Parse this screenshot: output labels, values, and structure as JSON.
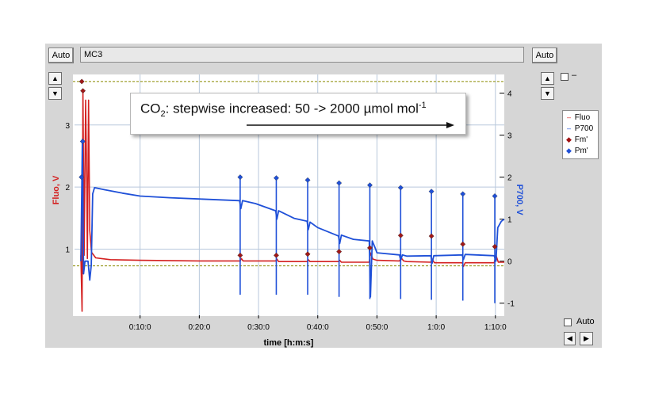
{
  "toolbar": {
    "left_auto_label": "Auto",
    "right_auto_label": "Auto",
    "trace_name": "MC3",
    "bottom_auto_label": "Auto",
    "right_check_label": "–",
    "up_arrow": "▲",
    "down_arrow": "▼",
    "left_arrow": "◀",
    "right_arrow": "▶"
  },
  "annotation": {
    "co": "CO",
    "sub": "2",
    "rest": ": stepwise increased: 50 -> 2000 µmol mol",
    "sup": "-1"
  },
  "legend": {
    "entries": [
      {
        "symbol": "–",
        "label": "Fluo",
        "color": "#d42020"
      },
      {
        "symbol": "–",
        "label": "P700",
        "color": "#1f50d8"
      },
      {
        "symbol": "◆",
        "label": "Fm'",
        "color": "#a01010"
      },
      {
        "symbol": "◆",
        "label": "Pm'",
        "color": "#1f50d8"
      }
    ]
  },
  "colors": {
    "fluo": "#d42020",
    "p700": "#1f50d8",
    "fm": "#a01818",
    "pm": "#1f50d8",
    "grid": "#b8c8dc",
    "ref_line": "#8a8a00"
  },
  "chart_data": {
    "type": "line",
    "xlabel": "time [h:m:s]",
    "ylabel_left": "Fluo, V",
    "ylabel_right": "P700, V",
    "xlim_min": [
      0,
      71.5
    ],
    "x_ticks": [
      {
        "value": 10,
        "label": "0:10:0"
      },
      {
        "value": 20,
        "label": "0:20:0"
      },
      {
        "value": 30,
        "label": "0:30:0"
      },
      {
        "value": 40,
        "label": "0:40:0"
      },
      {
        "value": 50,
        "label": "0:50:0"
      },
      {
        "value": 60,
        "label": "1:0:0"
      },
      {
        "value": 70,
        "label": "1:10:0"
      }
    ],
    "ylim_left": [
      -0.04,
      3.75
    ],
    "y_ticks_left": [
      1,
      2,
      3
    ],
    "ylim_right": [
      -1.25,
      4.35
    ],
    "y_ticks_right": [
      -1,
      0,
      1,
      2,
      3,
      4
    ],
    "ref_lines_left": [
      3.7,
      0.73
    ],
    "series": [
      {
        "name": "Fluo",
        "axis": "left",
        "points": [
          [
            0,
            0.9
          ],
          [
            0.2,
            0.0
          ],
          [
            0.35,
            3.55
          ],
          [
            0.55,
            0.9
          ],
          [
            0.8,
            3.4
          ],
          [
            1.0,
            2.0
          ],
          [
            1.1,
            0.85
          ],
          [
            1.3,
            3.4
          ],
          [
            1.5,
            1.3
          ],
          [
            1.8,
            0.95
          ],
          [
            2.5,
            0.86
          ],
          [
            5,
            0.83
          ],
          [
            10,
            0.82
          ],
          [
            20,
            0.81
          ],
          [
            26.9,
            0.81
          ],
          [
            27.1,
            0.85
          ],
          [
            27.4,
            0.81
          ],
          [
            32.9,
            0.81
          ],
          [
            33.1,
            0.84
          ],
          [
            33.4,
            0.8
          ],
          [
            38.2,
            0.8
          ],
          [
            38.4,
            0.83
          ],
          [
            38.7,
            0.8
          ],
          [
            43.5,
            0.8
          ],
          [
            43.7,
            0.82
          ],
          [
            44,
            0.79
          ],
          [
            48.7,
            0.79
          ],
          [
            48.9,
            0.94
          ],
          [
            49.3,
            0.84
          ],
          [
            50,
            0.82
          ],
          [
            53.8,
            0.81
          ],
          [
            54.1,
            0.86
          ],
          [
            54.5,
            0.81
          ],
          [
            55,
            0.8
          ],
          [
            59.1,
            0.79
          ],
          [
            59.3,
            0.84
          ],
          [
            59.7,
            0.78
          ],
          [
            64.4,
            0.78
          ],
          [
            64.6,
            0.72
          ],
          [
            64.9,
            0.78
          ],
          [
            69.8,
            0.78
          ],
          [
            70.1,
            0.9
          ],
          [
            70.5,
            0.79
          ],
          [
            71.5,
            0.79
          ]
        ]
      },
      {
        "name": "P700",
        "axis": "right",
        "points": [
          [
            0,
            0.0
          ],
          [
            0.25,
            2.9
          ],
          [
            0.45,
            -0.3
          ],
          [
            0.7,
            0.0
          ],
          [
            1.2,
            0.0
          ],
          [
            1.5,
            -0.45
          ],
          [
            1.75,
            -0.1
          ],
          [
            2.0,
            1.6
          ],
          [
            2.3,
            1.75
          ],
          [
            4,
            1.7
          ],
          [
            7,
            1.62
          ],
          [
            10,
            1.55
          ],
          [
            15,
            1.51
          ],
          [
            20,
            1.48
          ],
          [
            26.8,
            1.44
          ],
          [
            27.0,
            1.25
          ],
          [
            27.3,
            1.44
          ],
          [
            29.5,
            1.37
          ],
          [
            32.9,
            1.2
          ],
          [
            33.1,
            1.0
          ],
          [
            33.4,
            1.2
          ],
          [
            36,
            1.02
          ],
          [
            38.2,
            0.95
          ],
          [
            38.4,
            0.75
          ],
          [
            38.7,
            0.93
          ],
          [
            40,
            0.8
          ],
          [
            43.5,
            0.6
          ],
          [
            43.7,
            0.42
          ],
          [
            44,
            0.62
          ],
          [
            46,
            0.52
          ],
          [
            48.7,
            0.48
          ],
          [
            48.9,
            -0.85
          ],
          [
            49.2,
            0.48
          ],
          [
            49.6,
            0.35
          ],
          [
            50,
            0.2
          ],
          [
            53.8,
            0.15
          ],
          [
            54.0,
            0.02
          ],
          [
            54.3,
            0.15
          ],
          [
            55,
            0.12
          ],
          [
            59.1,
            0.13
          ],
          [
            59.3,
            -0.05
          ],
          [
            59.6,
            0.13
          ],
          [
            64.4,
            0.15
          ],
          [
            64.6,
            0.04
          ],
          [
            64.9,
            0.16
          ],
          [
            69.8,
            0.13
          ],
          [
            70.1,
            0.0
          ],
          [
            70.4,
            0.8
          ],
          [
            71.0,
            0.95
          ],
          [
            71.5,
            1.0
          ]
        ]
      },
      {
        "name": "Fm'",
        "axis": "left",
        "marker": "diamond",
        "points": [
          [
            0.15,
            3.7
          ],
          [
            0.35,
            3.55
          ],
          [
            26.9,
            0.9
          ],
          [
            33.0,
            0.9
          ],
          [
            38.3,
            0.92
          ],
          [
            43.6,
            0.96
          ],
          [
            48.8,
            1.02
          ],
          [
            54.0,
            1.22
          ],
          [
            59.2,
            1.21
          ],
          [
            64.5,
            1.08
          ],
          [
            69.9,
            1.04
          ]
        ]
      },
      {
        "name": "Pm'",
        "axis": "right",
        "marker": "diamond",
        "points": [
          [
            0.1,
            2.0
          ],
          [
            0.3,
            2.85
          ],
          [
            26.9,
            2.0
          ],
          [
            33.0,
            1.98
          ],
          [
            38.3,
            1.93
          ],
          [
            43.6,
            1.86
          ],
          [
            48.8,
            1.81
          ],
          [
            54.0,
            1.75
          ],
          [
            59.2,
            1.66
          ],
          [
            64.5,
            1.6
          ],
          [
            69.9,
            1.55
          ]
        ],
        "spike_low": [
          [
            26.9,
            -0.8
          ],
          [
            33.0,
            -0.8
          ],
          [
            38.3,
            -0.8
          ],
          [
            43.6,
            -0.85
          ],
          [
            48.8,
            -0.9
          ],
          [
            54.0,
            -0.9
          ],
          [
            59.2,
            -0.92
          ],
          [
            64.5,
            -0.94
          ],
          [
            69.9,
            -1.0
          ]
        ]
      }
    ]
  }
}
